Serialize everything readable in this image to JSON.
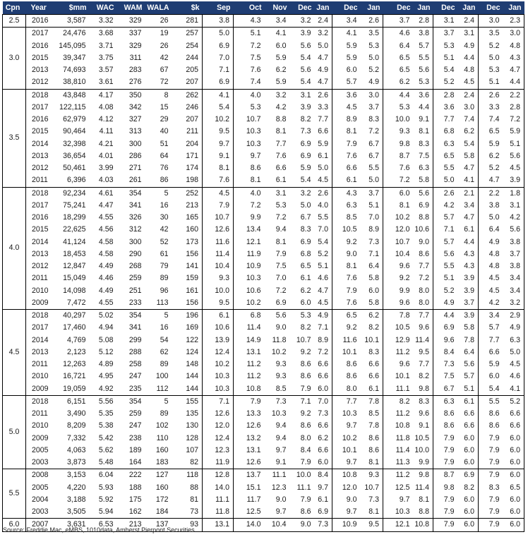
{
  "headers": [
    "Cpn",
    "Year",
    "$mm",
    "WAC",
    "WAM",
    "WALA",
    "$k",
    "Sep",
    "Oct",
    "Nov",
    "Dec",
    "Jan",
    "Dec",
    "Jan",
    "Dec",
    "Jan",
    "Dec",
    "Jan",
    "Dec",
    "Jan"
  ],
  "colors": {
    "header_bg": "#1f3d73",
    "header_text": "#ffffff"
  },
  "chart_data": {
    "type": "table",
    "groups": [
      {
        "cpn": "2.5",
        "rows": [
          [
            "2016",
            "3,587",
            "3.32",
            "329",
            "26",
            "281",
            "3.8",
            "4.3",
            "3.4",
            "3.2",
            "2.4",
            "3.4",
            "2.6",
            "3.7",
            "2.8",
            "3.1",
            "2.4",
            "3.0",
            "2.3"
          ]
        ]
      },
      {
        "cpn": "3.0",
        "rows": [
          [
            "2017",
            "24,476",
            "3.68",
            "337",
            "19",
            "257",
            "5.0",
            "5.1",
            "4.1",
            "3.9",
            "3.2",
            "4.1",
            "3.5",
            "4.6",
            "3.8",
            "3.7",
            "3.1",
            "3.5",
            "3.0"
          ],
          [
            "2016",
            "145,095",
            "3.71",
            "329",
            "26",
            "254",
            "6.9",
            "7.2",
            "6.0",
            "5.6",
            "5.0",
            "5.9",
            "5.3",
            "6.4",
            "5.7",
            "5.3",
            "4.9",
            "5.2",
            "4.8"
          ],
          [
            "2015",
            "39,347",
            "3.75",
            "311",
            "42",
            "244",
            "7.0",
            "7.5",
            "5.9",
            "5.4",
            "4.7",
            "5.9",
            "5.0",
            "6.5",
            "5.5",
            "5.1",
            "4.4",
            "5.0",
            "4.3"
          ],
          [
            "2013",
            "74,693",
            "3.57",
            "283",
            "67",
            "205",
            "7.1",
            "7.6",
            "6.2",
            "5.6",
            "4.9",
            "6.0",
            "5.2",
            "6.5",
            "5.6",
            "5.4",
            "4.8",
            "5.3",
            "4.7"
          ],
          [
            "2012",
            "38,810",
            "3.61",
            "276",
            "72",
            "207",
            "6.9",
            "7.4",
            "5.9",
            "5.4",
            "4.7",
            "5.7",
            "4.9",
            "6.2",
            "5.3",
            "5.2",
            "4.5",
            "5.1",
            "4.4"
          ]
        ]
      },
      {
        "cpn": "3.5",
        "rows": [
          [
            "2018",
            "43,848",
            "4.17",
            "350",
            "8",
            "262",
            "4.1",
            "4.0",
            "3.2",
            "3.1",
            "2.6",
            "3.6",
            "3.0",
            "4.4",
            "3.6",
            "2.8",
            "2.4",
            "2.6",
            "2.2"
          ],
          [
            "2017",
            "122,115",
            "4.08",
            "342",
            "15",
            "246",
            "5.4",
            "5.3",
            "4.2",
            "3.9",
            "3.3",
            "4.5",
            "3.7",
            "5.3",
            "4.4",
            "3.6",
            "3.0",
            "3.3",
            "2.8"
          ],
          [
            "2016",
            "62,979",
            "4.12",
            "327",
            "29",
            "207",
            "10.2",
            "10.7",
            "8.8",
            "8.2",
            "7.7",
            "8.9",
            "8.3",
            "10.0",
            "9.1",
            "7.7",
            "7.4",
            "7.4",
            "7.2"
          ],
          [
            "2015",
            "90,464",
            "4.11",
            "313",
            "40",
            "211",
            "9.5",
            "10.3",
            "8.1",
            "7.3",
            "6.6",
            "8.1",
            "7.2",
            "9.3",
            "8.1",
            "6.8",
            "6.2",
            "6.5",
            "5.9"
          ],
          [
            "2014",
            "32,398",
            "4.21",
            "300",
            "51",
            "204",
            "9.7",
            "10.3",
            "7.7",
            "6.9",
            "5.9",
            "7.9",
            "6.7",
            "9.8",
            "8.3",
            "6.3",
            "5.4",
            "5.9",
            "5.1"
          ],
          [
            "2013",
            "36,654",
            "4.01",
            "286",
            "64",
            "171",
            "9.1",
            "9.7",
            "7.6",
            "6.9",
            "6.1",
            "7.6",
            "6.7",
            "8.7",
            "7.5",
            "6.5",
            "5.8",
            "6.2",
            "5.6"
          ],
          [
            "2012",
            "50,461",
            "3.99",
            "271",
            "76",
            "174",
            "8.1",
            "8.6",
            "6.6",
            "5.9",
            "5.0",
            "6.6",
            "5.5",
            "7.6",
            "6.3",
            "5.5",
            "4.7",
            "5.2",
            "4.5"
          ],
          [
            "2011",
            "6,396",
            "4.03",
            "261",
            "86",
            "198",
            "7.6",
            "8.1",
            "6.1",
            "5.4",
            "4.5",
            "6.1",
            "5.0",
            "7.2",
            "5.8",
            "5.0",
            "4.1",
            "4.7",
            "3.9"
          ]
        ]
      },
      {
        "cpn": "4.0",
        "rows": [
          [
            "2018",
            "92,234",
            "4.61",
            "354",
            "5",
            "252",
            "4.5",
            "4.0",
            "3.1",
            "3.2",
            "2.6",
            "4.3",
            "3.7",
            "6.0",
            "5.6",
            "2.6",
            "2.1",
            "2.2",
            "1.8"
          ],
          [
            "2017",
            "75,241",
            "4.47",
            "341",
            "16",
            "213",
            "7.9",
            "7.2",
            "5.3",
            "5.0",
            "4.0",
            "6.3",
            "5.1",
            "8.1",
            "6.9",
            "4.2",
            "3.4",
            "3.8",
            "3.1"
          ],
          [
            "2016",
            "18,299",
            "4.55",
            "326",
            "30",
            "165",
            "10.7",
            "9.9",
            "7.2",
            "6.7",
            "5.5",
            "8.5",
            "7.0",
            "10.2",
            "8.8",
            "5.7",
            "4.7",
            "5.0",
            "4.2"
          ],
          [
            "2015",
            "22,625",
            "4.56",
            "312",
            "42",
            "160",
            "12.6",
            "13.4",
            "9.4",
            "8.3",
            "7.0",
            "10.5",
            "8.9",
            "12.0",
            "10.6",
            "7.1",
            "6.1",
            "6.4",
            "5.6"
          ],
          [
            "2014",
            "41,124",
            "4.58",
            "300",
            "52",
            "173",
            "11.6",
            "12.1",
            "8.1",
            "6.9",
            "5.4",
            "9.2",
            "7.3",
            "10.7",
            "9.0",
            "5.7",
            "4.4",
            "4.9",
            "3.8"
          ],
          [
            "2013",
            "18,453",
            "4.58",
            "290",
            "61",
            "156",
            "11.4",
            "11.9",
            "7.9",
            "6.8",
            "5.2",
            "9.0",
            "7.1",
            "10.4",
            "8.6",
            "5.6",
            "4.3",
            "4.8",
            "3.7"
          ],
          [
            "2012",
            "12,847",
            "4.49",
            "268",
            "79",
            "141",
            "10.4",
            "10.9",
            "7.5",
            "6.5",
            "5.1",
            "8.1",
            "6.4",
            "9.6",
            "7.7",
            "5.5",
            "4.3",
            "4.8",
            "3.8"
          ],
          [
            "2011",
            "15,049",
            "4.46",
            "259",
            "89",
            "159",
            "9.3",
            "10.3",
            "7.0",
            "6.1",
            "4.6",
            "7.6",
            "5.8",
            "9.2",
            "7.2",
            "5.1",
            "3.9",
            "4.5",
            "3.4"
          ],
          [
            "2010",
            "14,098",
            "4.49",
            "251",
            "96",
            "161",
            "10.0",
            "10.6",
            "7.2",
            "6.2",
            "4.7",
            "7.9",
            "6.0",
            "9.9",
            "8.0",
            "5.2",
            "3.9",
            "4.5",
            "3.4"
          ],
          [
            "2009",
            "7,472",
            "4.55",
            "233",
            "113",
            "156",
            "9.5",
            "10.2",
            "6.9",
            "6.0",
            "4.5",
            "7.6",
            "5.8",
            "9.6",
            "8.0",
            "4.9",
            "3.7",
            "4.2",
            "3.2"
          ]
        ]
      },
      {
        "cpn": "4.5",
        "rows": [
          [
            "2018",
            "40,297",
            "5.02",
            "354",
            "5",
            "196",
            "6.1",
            "6.8",
            "5.6",
            "5.3",
            "4.9",
            "6.5",
            "6.2",
            "7.8",
            "7.7",
            "4.4",
            "3.9",
            "3.4",
            "2.9"
          ],
          [
            "2017",
            "17,460",
            "4.94",
            "341",
            "16",
            "169",
            "10.6",
            "11.4",
            "9.0",
            "8.2",
            "7.1",
            "9.2",
            "8.2",
            "10.5",
            "9.6",
            "6.9",
            "5.8",
            "5.7",
            "4.9"
          ],
          [
            "2014",
            "4,769",
            "5.08",
            "299",
            "54",
            "122",
            "13.9",
            "14.9",
            "11.8",
            "10.7",
            "8.9",
            "11.6",
            "10.1",
            "12.9",
            "11.4",
            "9.6",
            "7.8",
            "7.7",
            "6.3"
          ],
          [
            "2013",
            "2,123",
            "5.12",
            "288",
            "62",
            "124",
            "12.4",
            "13.1",
            "10.2",
            "9.2",
            "7.2",
            "10.1",
            "8.3",
            "11.2",
            "9.5",
            "8.4",
            "6.4",
            "6.6",
            "5.0"
          ],
          [
            "2011",
            "12,263",
            "4.89",
            "258",
            "89",
            "148",
            "10.2",
            "11.2",
            "9.3",
            "8.6",
            "6.6",
            "8.6",
            "6.6",
            "9.6",
            "7.7",
            "7.3",
            "5.6",
            "5.9",
            "4.5"
          ],
          [
            "2010",
            "16,721",
            "4.95",
            "247",
            "100",
            "144",
            "10.3",
            "11.2",
            "9.3",
            "8.6",
            "6.6",
            "8.6",
            "6.6",
            "10.1",
            "8.2",
            "7.5",
            "5.7",
            "6.0",
            "4.6"
          ],
          [
            "2009",
            "19,059",
            "4.92",
            "235",
            "112",
            "144",
            "10.3",
            "10.8",
            "8.5",
            "7.9",
            "6.0",
            "8.0",
            "6.1",
            "11.1",
            "9.8",
            "6.7",
            "5.1",
            "5.4",
            "4.1"
          ]
        ]
      },
      {
        "cpn": "5.0",
        "rows": [
          [
            "2018",
            "6,151",
            "5.56",
            "354",
            "5",
            "155",
            "7.1",
            "7.9",
            "7.3",
            "7.1",
            "7.0",
            "7.7",
            "7.8",
            "8.2",
            "8.3",
            "6.3",
            "6.1",
            "5.5",
            "5.2"
          ],
          [
            "2011",
            "3,490",
            "5.35",
            "259",
            "89",
            "135",
            "12.6",
            "13.3",
            "10.3",
            "9.2",
            "7.3",
            "10.3",
            "8.5",
            "11.2",
            "9.6",
            "8.6",
            "6.6",
            "8.6",
            "6.6"
          ],
          [
            "2010",
            "8,209",
            "5.38",
            "247",
            "102",
            "130",
            "12.0",
            "12.6",
            "9.4",
            "8.6",
            "6.6",
            "9.7",
            "7.8",
            "10.8",
            "9.1",
            "8.6",
            "6.6",
            "8.6",
            "6.6"
          ],
          [
            "2009",
            "7,332",
            "5.42",
            "238",
            "110",
            "128",
            "12.4",
            "13.2",
            "9.4",
            "8.0",
            "6.2",
            "10.2",
            "8.6",
            "11.8",
            "10.5",
            "7.9",
            "6.0",
            "7.9",
            "6.0"
          ],
          [
            "2005",
            "4,063",
            "5.62",
            "189",
            "160",
            "107",
            "12.3",
            "13.1",
            "9.7",
            "8.4",
            "6.6",
            "10.1",
            "8.6",
            "11.4",
            "10.0",
            "7.9",
            "6.0",
            "7.9",
            "6.0"
          ],
          [
            "2003",
            "3,873",
            "5.48",
            "164",
            "183",
            "82",
            "11.9",
            "12.6",
            "9.1",
            "7.9",
            "6.0",
            "9.7",
            "8.1",
            "11.3",
            "9.9",
            "7.9",
            "6.0",
            "7.9",
            "6.0"
          ]
        ]
      },
      {
        "cpn": "5.5",
        "rows": [
          [
            "2008",
            "3,153",
            "6.04",
            "222",
            "127",
            "118",
            "12.8",
            "13.7",
            "11.1",
            "10.0",
            "8.4",
            "10.8",
            "9.3",
            "11.2",
            "9.8",
            "8.7",
            "6.9",
            "7.9",
            "6.0"
          ],
          [
            "2005",
            "4,220",
            "5.93",
            "188",
            "160",
            "88",
            "14.0",
            "15.1",
            "12.3",
            "11.1",
            "9.7",
            "12.0",
            "10.7",
            "12.5",
            "11.4",
            "9.8",
            "8.2",
            "8.3",
            "6.5"
          ],
          [
            "2004",
            "3,188",
            "5.92",
            "175",
            "172",
            "81",
            "11.1",
            "11.7",
            "9.0",
            "7.9",
            "6.1",
            "9.0",
            "7.3",
            "9.7",
            "8.1",
            "7.9",
            "6.0",
            "7.9",
            "6.0"
          ],
          [
            "2003",
            "3,505",
            "5.94",
            "162",
            "184",
            "73",
            "11.8",
            "12.5",
            "9.7",
            "8.6",
            "6.9",
            "9.7",
            "8.1",
            "10.3",
            "8.8",
            "7.9",
            "6.0",
            "7.9",
            "6.0"
          ]
        ]
      },
      {
        "cpn": "6.0",
        "rows": [
          [
            "2007",
            "3,631",
            "6.53",
            "213",
            "137",
            "93",
            "13.1",
            "14.0",
            "10.4",
            "9.0",
            "7.3",
            "10.9",
            "9.5",
            "12.1",
            "10.8",
            "7.9",
            "6.0",
            "7.9",
            "6.0"
          ]
        ]
      }
    ]
  },
  "source": "Source:  Freddie Mac, eMBS, 1010data, Amherst Pierpont Securities"
}
